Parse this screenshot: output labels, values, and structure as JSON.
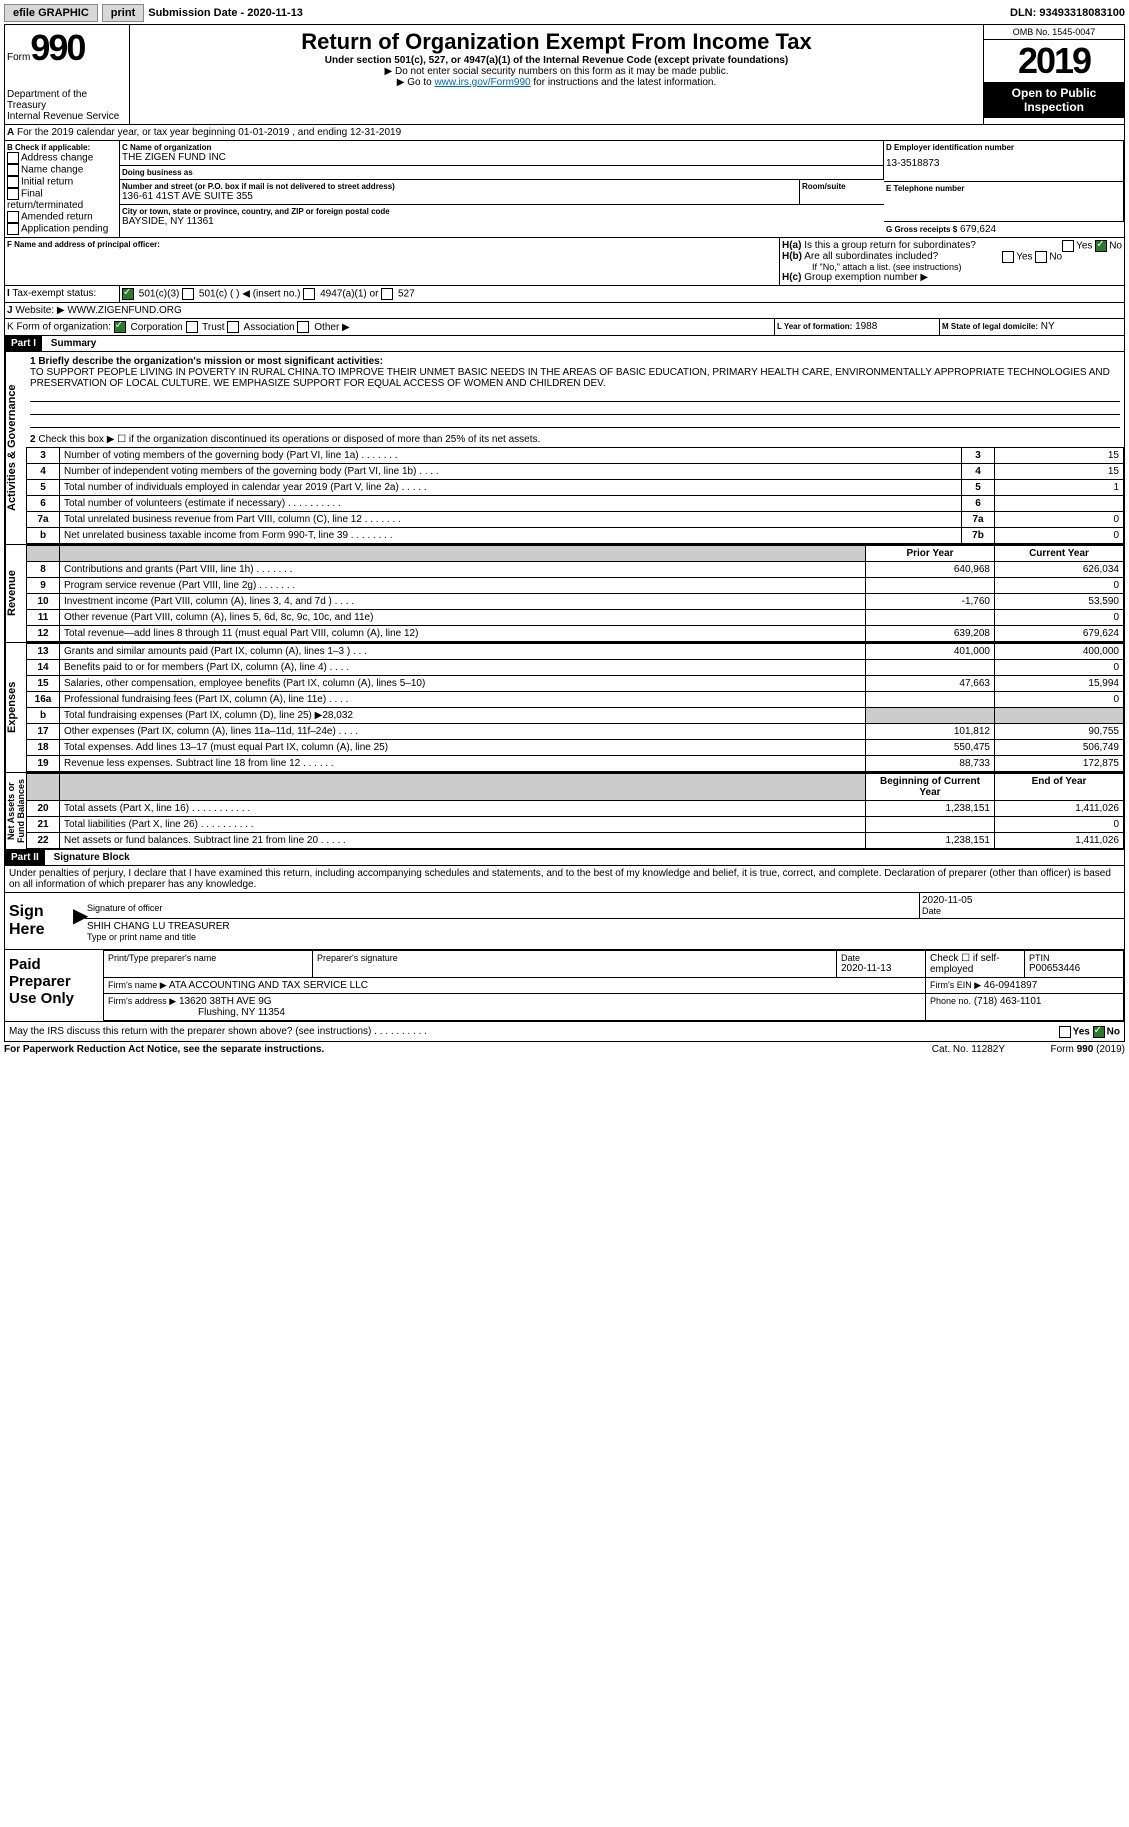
{
  "topbar": {
    "efile": "efile GRAPHIC",
    "print": "print",
    "sub_label": "Submission Date - 2020-11-13",
    "dln": "DLN: 93493318083100"
  },
  "header": {
    "form_prefix": "Form",
    "form_num": "990",
    "dept": "Department of the Treasury\nInternal Revenue Service",
    "title": "Return of Organization Exempt From Income Tax",
    "subtitle": "Under section 501(c), 527, or 4947(a)(1) of the Internal Revenue Code (except private foundations)",
    "hint1": "▶ Do not enter social security numbers on this form as it may be made public.",
    "hint2_pre": "▶ Go to ",
    "hint2_link": "www.irs.gov/Form990",
    "hint2_post": " for instructions and the latest information.",
    "omb": "OMB No. 1545-0047",
    "year": "2019",
    "inspect": "Open to Public Inspection"
  },
  "period": "For the 2019 calendar year, or tax year beginning 01-01-2019    , and ending 12-31-2019",
  "boxB": {
    "title": "B Check if applicable:",
    "opts": [
      "Address change",
      "Name change",
      "Initial return",
      "Final return/terminated",
      "Amended return",
      "Application pending"
    ]
  },
  "org": {
    "c_label": "C Name of organization",
    "name": "THE ZIGEN FUND INC",
    "dba_label": "Doing business as",
    "dba": "",
    "addr_label": "Number and street (or P.O. box if mail is not delivered to street address)",
    "room_label": "Room/suite",
    "addr": "136-61 41ST AVE SUITE 355",
    "city_label": "City or town, state or province, country, and ZIP or foreign postal code",
    "city": "BAYSIDE, NY  11361",
    "f_label": "F  Name and address of principal officer:",
    "f_val": ""
  },
  "boxD": {
    "label": "D Employer identification number",
    "val": "13-3518873"
  },
  "boxE": {
    "label": "E Telephone number",
    "val": ""
  },
  "boxG": {
    "label": "G Gross receipts $",
    "val": "679,624"
  },
  "boxH": {
    "a": "Is this a group return for subordinates?",
    "b": "Are all subordinates included?",
    "b_note": "If \"No,\" attach a list. (see instructions)",
    "c": "Group exemption number ▶"
  },
  "taxstatus": {
    "label": "Tax-exempt status:",
    "opts": [
      "501(c)(3)",
      "501(c) (  ) ◀ (insert no.)",
      "4947(a)(1) or",
      "527"
    ]
  },
  "website": {
    "label": "Website: ▶",
    "val": "WWW.ZIGENFUND.ORG"
  },
  "boxK": {
    "label": "K Form of organization:",
    "opts": [
      "Corporation",
      "Trust",
      "Association",
      "Other ▶"
    ]
  },
  "boxL": {
    "label": "L Year of formation:",
    "val": "1988"
  },
  "boxM": {
    "label": "M State of legal domicile:",
    "val": "NY"
  },
  "part1": {
    "hdr": "Part I",
    "title": "Summary"
  },
  "mission": {
    "label": "1   Briefly describe the organization's mission or most significant activities:",
    "text": "TO SUPPORT PEOPLE LIVING IN POVERTY IN RURAL CHINA.TO IMPROVE THEIR UNMET BASIC NEEDS IN THE AREAS OF BASIC EDUCATION, PRIMARY HEALTH CARE, ENVIRONMENTALLY APPROPRIATE TECHNOLOGIES AND PRESERVATION OF LOCAL CULTURE. WE EMPHASIZE SUPPORT FOR EQUAL ACCESS OF WOMEN AND CHILDREN DEV."
  },
  "line2": "Check this box ▶ ☐  if the organization discontinued its operations or disposed of more than 25% of its net assets.",
  "gov_rows": [
    {
      "n": "3",
      "t": "Number of voting members of the governing body (Part VI, line 1a)   .    .    .    .    .    .    .",
      "box": "3",
      "v": "15"
    },
    {
      "n": "4",
      "t": "Number of independent voting members of the governing body (Part VI, line 1b)   .    .    .    .",
      "box": "4",
      "v": "15"
    },
    {
      "n": "5",
      "t": "Total number of individuals employed in calendar year 2019 (Part V, line 2a)   .    .    .    .    .",
      "box": "5",
      "v": "1"
    },
    {
      "n": "6",
      "t": "Total number of volunteers (estimate if necessary)    .    .    .    .    .    .    .    .    .    .",
      "box": "6",
      "v": ""
    },
    {
      "n": "7a",
      "t": "Total unrelated business revenue from Part VIII, column (C), line 12   .    .    .    .    .    .    .",
      "box": "7a",
      "v": "0"
    },
    {
      "n": "b",
      "t": "Net unrelated business taxable income from Form 990-T, line 39    .    .    .    .    .    .    .    .",
      "box": "7b",
      "v": "0"
    }
  ],
  "rev_hdr": {
    "py": "Prior Year",
    "cy": "Current Year"
  },
  "rev_rows": [
    {
      "n": "8",
      "t": "Contributions and grants (Part VIII, line 1h)   .    .    .    .    .    .    .",
      "py": "640,968",
      "cy": "626,034"
    },
    {
      "n": "9",
      "t": "Program service revenue (Part VIII, line 2g)   .    .    .    .    .    .    .",
      "py": "",
      "cy": "0"
    },
    {
      "n": "10",
      "t": "Investment income (Part VIII, column (A), lines 3, 4, and 7d )   .    .    .    .",
      "py": "-1,760",
      "cy": "53,590"
    },
    {
      "n": "11",
      "t": "Other revenue (Part VIII, column (A), lines 5, 6d, 8c, 9c, 10c, and 11e)",
      "py": "",
      "cy": "0"
    },
    {
      "n": "12",
      "t": "Total revenue—add lines 8 through 11 (must equal Part VIII, column (A), line 12)",
      "py": "639,208",
      "cy": "679,624"
    }
  ],
  "exp_rows": [
    {
      "n": "13",
      "t": "Grants and similar amounts paid (Part IX, column (A), lines 1–3 )  .    .    .",
      "py": "401,000",
      "cy": "400,000"
    },
    {
      "n": "14",
      "t": "Benefits paid to or for members (Part IX, column (A), line 4)  .    .    .    .",
      "py": "",
      "cy": "0"
    },
    {
      "n": "15",
      "t": "Salaries, other compensation, employee benefits (Part IX, column (A), lines 5–10)",
      "py": "47,663",
      "cy": "15,994"
    },
    {
      "n": "16a",
      "t": "Professional fundraising fees (Part IX, column (A), line 11e)   .    .    .    .",
      "py": "",
      "cy": "0"
    },
    {
      "n": "b",
      "t": "Total fundraising expenses (Part IX, column (D), line 25) ▶28,032",
      "py": "grey",
      "cy": "grey"
    },
    {
      "n": "17",
      "t": "Other expenses (Part IX, column (A), lines 11a–11d, 11f–24e)   .    .    .    .",
      "py": "101,812",
      "cy": "90,755"
    },
    {
      "n": "18",
      "t": "Total expenses. Add lines 13–17 (must equal Part IX, column (A), line 25)",
      "py": "550,475",
      "cy": "506,749"
    },
    {
      "n": "19",
      "t": "Revenue less expenses. Subtract line 18 from line 12   .    .    .    .    .    .",
      "py": "88,733",
      "cy": "172,875"
    }
  ],
  "net_hdr": {
    "py": "Beginning of Current Year",
    "cy": "End of Year"
  },
  "net_rows": [
    {
      "n": "20",
      "t": "Total assets (Part X, line 16)  .    .    .    .    .    .    .    .    .    .    .",
      "py": "1,238,151",
      "cy": "1,411,026"
    },
    {
      "n": "21",
      "t": "Total liabilities (Part X, line 26)  .    .    .    .    .    .    .    .    .    .",
      "py": "",
      "cy": "0"
    },
    {
      "n": "22",
      "t": "Net assets or fund balances. Subtract line 21 from line 20  .    .    .    .    .",
      "py": "1,238,151",
      "cy": "1,411,026"
    }
  ],
  "part2": {
    "hdr": "Part II",
    "title": "Signature Block"
  },
  "perjury": "Under penalties of perjury, I declare that I have examined this return, including accompanying schedules and statements, and to the best of my knowledge and belief, it is true, correct, and complete. Declaration of preparer (other than officer) is based on all information of which preparer has any knowledge.",
  "sign": {
    "here": "Sign Here",
    "sig_label": "Signature of officer",
    "date": "2020-11-05",
    "name": "SHIH CHANG LU  TREASURER",
    "name_label": "Type or print name and title"
  },
  "prep": {
    "title": "Paid Preparer Use Only",
    "h1": "Print/Type preparer's name",
    "h2": "Preparer's signature",
    "h3": "Date",
    "h3v": "2020-11-13",
    "h4": "Check ☐ if self-employed",
    "h5": "PTIN",
    "h5v": "P00653446",
    "firm_label": "Firm's name   ▶",
    "firm": "ATA ACCOUNTING AND TAX SERVICE LLC",
    "ein_label": "Firm's EIN ▶",
    "ein": "46-0941897",
    "addr_label": "Firm's address ▶",
    "addr1": "13620 38TH AVE 9G",
    "addr2": "Flushing, NY  11354",
    "phone_label": "Phone no.",
    "phone": "(718) 463-1101"
  },
  "discuss": "May the IRS discuss this return with the preparer shown above? (see instructions)    .    .    .    .    .    .    .    .    .    .",
  "footer": {
    "l": "For Paperwork Reduction Act Notice, see the separate instructions.",
    "c": "Cat. No. 11282Y",
    "r": "Form 990 (2019)"
  }
}
